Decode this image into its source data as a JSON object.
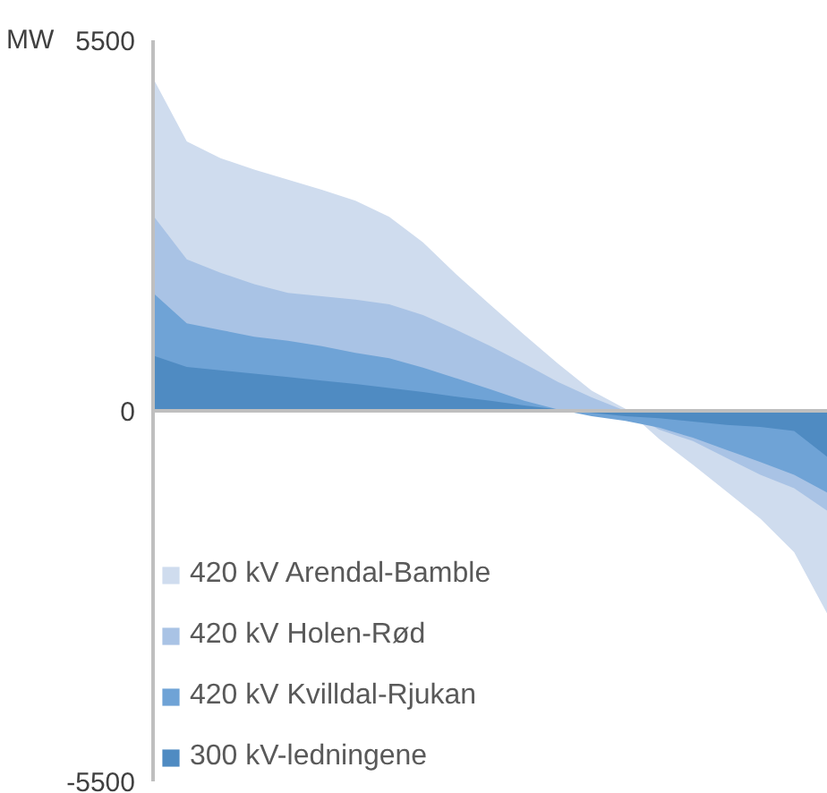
{
  "chart_data": {
    "type": "area",
    "ylabel": "MW",
    "categories": [
      null,
      null,
      null,
      null,
      null,
      null,
      null,
      null,
      null,
      null,
      null,
      null,
      null,
      null,
      null,
      null,
      null,
      null,
      null,
      null,
      null
    ],
    "series": [
      {
        "name": "420 kV Arendal-Bamble",
        "color": "#cfdcee",
        "values": [
          4940,
          4000,
          3750,
          3580,
          3430,
          3280,
          3120,
          2880,
          2500,
          2020,
          1570,
          1130,
          700,
          300,
          30,
          -420,
          -800,
          -1200,
          -1600,
          -2100,
          -3030
        ]
      },
      {
        "name": "420 kV Holen-Rød",
        "color": "#a9c3e5",
        "values": [
          2900,
          2250,
          2050,
          1880,
          1750,
          1700,
          1650,
          1580,
          1420,
          1200,
          960,
          700,
          430,
          200,
          0,
          -280,
          -450,
          -700,
          -950,
          -1150,
          -1490
        ]
      },
      {
        "name": "420 kV Kvilldal-Rjukan",
        "color": "#6fa3d6",
        "values": [
          1750,
          1300,
          1200,
          1100,
          1040,
          960,
          860,
          780,
          640,
          480,
          320,
          150,
          20,
          -80,
          -150,
          -250,
          -400,
          -580,
          -760,
          -950,
          -1220
        ]
      },
      {
        "name": "300 kV-ledningene",
        "color": "#4f8bc2",
        "values": [
          820,
          650,
          600,
          550,
          500,
          450,
          400,
          340,
          280,
          210,
          150,
          80,
          20,
          -30,
          -80,
          -110,
          -160,
          -210,
          -240,
          -300,
          -690
        ]
      }
    ],
    "ylim": [
      -5500,
      5500
    ],
    "yticks": [
      5500,
      0,
      -5500
    ],
    "ref_lines": [
      {
        "axis": "y",
        "value": 0,
        "color": "#bfbfbf"
      }
    ],
    "grid": false,
    "legend": "bottom left",
    "tick_labels": "y"
  }
}
